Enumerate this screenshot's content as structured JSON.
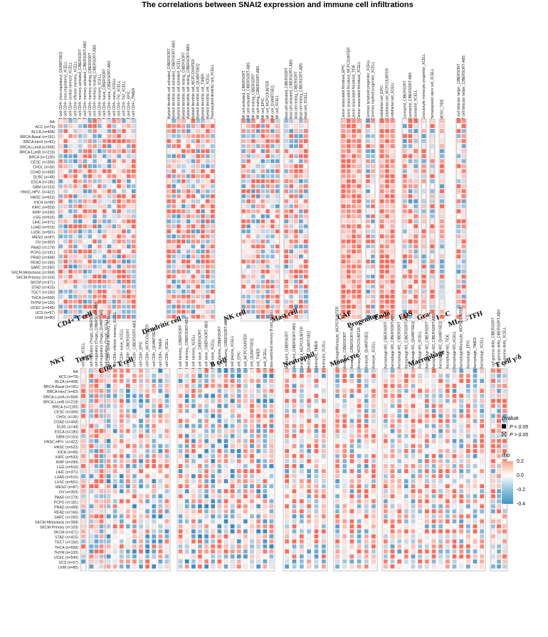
{
  "chart_data": {
    "type": "heatmap",
    "title": "The correlations between SNAI2 expression and immune cell infiltrations",
    "rows": [
      "NA",
      "ACC (n=79)",
      "BLCA (n=408)",
      "BRCA-Basal (n=191)",
      "BRCA-Her2 (n=82)",
      "BRCA-LumA (n=568)",
      "BRCA-LumB (n=219)",
      "BRCA (n=1100)",
      "CESC (n=306)",
      "CHOL (n=36)",
      "COAD (n=458)",
      "DLBC (n=48)",
      "ESCA (n=185)",
      "GBM (n=153)",
      "HNSC-HPV- (n=422)",
      "HNSC (n=522)",
      "KICH (n=66)",
      "KIRC (n=533)",
      "KIRP (n=290)",
      "LGG (n=516)",
      "LIHC (n=371)",
      "LUAD (n=515)",
      "LUSC (n=501)",
      "MESO (n=87)",
      "OV (n=303)",
      "PAAD (n=179)",
      "PCPG (n=181)",
      "PRAD (n=498)",
      "READ (n=166)",
      "SARC (n=260)",
      "SKCM-Metastasis (n=368)",
      "SKCM-Primary (n=103)",
      "SKCM (n=471)",
      "STAD (n=415)",
      "TGCT (n=150)",
      "THCA (n=509)",
      "THYM (n=120)",
      "UCEC (n=545)",
      "UCS (n=57)",
      "UVM (n=80)"
    ],
    "panels": [
      {
        "name": "CD4+ T cell",
        "cols": [
          "T cell CD4+ (non-regulatory)_QUANTISEQ",
          "T cell CD4+ (non-regulatory)_XCELL",
          "T cell CD4+ central memory_XCELL",
          "T cell CD4+ effector memory_XCELL",
          "T cell CD4+ memory activated_CIBERSORT",
          "T cell CD4+ memory activated_CIBERSORT-ABS",
          "T cell CD4+ memory resting_CIBERSORT",
          "T cell CD4+ memory resting_CIBERSORT-ABS",
          "T cell CD4+ memory_XCELL",
          "T cell CD4+ naive_CIBERSORT",
          "T cell CD4+ naive_CIBERSORT-ABS",
          "T cell CD4+ naive_XCELL",
          "T cell CD4+ Th1_XCELL",
          "T cell CD4+ Th2_XCELL",
          "T cell CD4+_EPIC",
          "T cell CD4+_TIMER"
        ]
      },
      {
        "name": "Dendritic cell",
        "cols": [
          "Myeloid dendritic cell activated_CIBERSORT",
          "Myeloid dendritic cell activated_CIBERSORT-ABS",
          "Myeloid dendritic cell activated_XCELL",
          "Myeloid dendritic cell resting_CIBERSORT",
          "Myeloid dendritic cell resting_CIBERSORT-ABS",
          "Myeloid dendritic cell_MCPCOUNTER",
          "Myeloid dendritic cell_QUANTISEQ",
          "Myeloid dendritic cell_TIMER",
          "Myeloid dendritic cell_XCELL",
          "Plasmacytoid dendritic cell_XCELL"
        ]
      },
      {
        "name": "NK cell",
        "cols": [
          "NK cell activated_CIBERSORT",
          "NK cell activated_CIBERSORT-ABS",
          "NK cell resting_CIBERSORT",
          "NK cell resting_CIBERSORT-ABS",
          "NK cell_EPIC",
          "NK cell_MCPCOUNTER",
          "NK cell_QUANTISEQ",
          "NK cell_XCELL"
        ]
      },
      {
        "name": "Mast cell",
        "cols": [
          "Mast cell activated_CIBERSORT",
          "Mast cell activated_CIBERSORT-ABS",
          "Mast cell resting_CIBERSORT",
          "Mast cell resting_CIBERSORT-ABS",
          "Mast cell_XCELL"
        ]
      },
      {
        "name": "CAF",
        "cols": [
          "Cancer associated fibroblast_EPIC",
          "Cancer associated fibroblast_MCPCOUNTER",
          "Cancer associated fibroblast_TIDE",
          "Cancer associated fibroblast_XCELL"
        ]
      },
      {
        "name": "Progenitor",
        "cols": [
          "Common lymphoid progenitor_XCELL",
          "Common myeloid progenitor_XCELL"
        ]
      },
      {
        "name": "Endo",
        "cols": [
          "Endothelial cell_EPIC",
          "Endothelial cell_MCPCOUNTER",
          "Endothelial cell_XCELL"
        ]
      },
      {
        "name": "EOS",
        "cols": [
          "Eosinophil_CIBERSORT",
          "Eosinophil_CIBERSORT-ABS",
          "Eosinophil_XCELL"
        ]
      },
      {
        "name": "Gran",
        "cols": [
          "Granulocyte-monocyte progenitor_XCELL"
        ]
      },
      {
        "name": "HSC",
        "cols": [
          "Hematopoietic stem cell_XCELL"
        ]
      },
      {
        "name": "MDSC",
        "cols": [
          "MDSC_TIDE"
        ]
      },
      {
        "name": "TFH",
        "cols": [
          "T cell follicular helper_CIBERSORT",
          "T cell follicular helper_CIBERSORT-ABS"
        ]
      },
      {
        "name": "NKT",
        "cols": [
          "T cell NK_XCELL"
        ]
      },
      {
        "name": "Tregs",
        "cols": [
          "T cell regulatory (Tregs)_CIBERSORT",
          "T cell regulatory (Tregs)_CIBERSORT-ABS",
          "T cell regulatory (Tregs)_QUANTISEQ",
          "T cell regulatory (Tregs)_XCELL"
        ]
      },
      {
        "name": "CD8+ T cell",
        "cols": [
          "T cell CD8+ central memory_XCELL",
          "T cell CD8+ effector memory_XCELL",
          "T cell CD8+ naive_XCELL",
          "T cell CD8+_CIBERSORT",
          "T cell CD8+_CIBERSORT-ABS",
          "T cell CD8+_EPIC",
          "T cell CD8+_MCPCOUNTER",
          "T cell CD8+_QUANTISEQ",
          "T cell CD8+_TIMER",
          "T cell CD8+_XCELL"
        ]
      },
      {
        "name": "B cell",
        "cols": [
          "B cell memory_CIBERSORT",
          "B cell memory_CIBERSORT-ABS",
          "B cell memory_XCELL",
          "B cell naive_CIBERSORT",
          "B cell naive_CIBERSORT-ABS",
          "B cell naive_XCELL",
          "B cell plasma_CIBERSORT",
          "B cell plasma_CIBERSORT-ABS",
          "B cell plasma_XCELL",
          "B cell_EPIC",
          "B cell_MCPCOUNTER",
          "B cell_QUANTISEQ",
          "B cell_TIMER",
          "B cell_XCELL",
          "Class-switched memory B cell_XCELL"
        ]
      },
      {
        "name": "Neutrophil",
        "cols": [
          "Neutrophil_CIBERSORT",
          "Neutrophil_CIBERSORT-ABS",
          "Neutrophil_MCPCOUNTER",
          "Neutrophil_QUANTISEQ",
          "Neutrophil_TIMER",
          "Neutrophil_XCELL"
        ]
      },
      {
        "name": "Monocyte",
        "cols": [
          "Macrophage/Monocyte_MCPCOUNTER",
          "Monocyte_CIBERSORT",
          "Monocyte_CIBERSORT-ABS",
          "Monocyte_MCPCOUNTER",
          "Monocyte_QUANTISEQ",
          "Monocyte_XCELL"
        ]
      },
      {
        "name": "Macrophage",
        "cols": [
          "Macrophage M0_CIBERSORT",
          "Macrophage M0_CIBERSORT-ABS",
          "Macrophage M1_CIBERSORT",
          "Macrophage M1_CIBERSORT-ABS",
          "Macrophage M1_QUANTISEQ",
          "Macrophage M1_XCELL",
          "Macrophage M2_CIBERSORT",
          "Macrophage M2_CIBERSORT-ABS",
          "Macrophage M2_QUANTISEQ",
          "Macrophage M2_TIDE",
          "Macrophage M2_XCELL",
          "Macrophage/Monocyte_MCPCOUNTER",
          "Macrophage_EPIC",
          "Macrophage_TIMER",
          "Macrophage_XCELL"
        ]
      },
      {
        "name": "T cell γ/δ",
        "cols": [
          "T cell gamma delta_CIBERSORT",
          "T cell gamma delta_CIBERSORT-ABS",
          "T cell gamma delta_XCELL"
        ]
      }
    ],
    "color_scale": {
      "label": "rho",
      "min": -0.4,
      "max": 0.2,
      "ticks": [
        0.2,
        0.0,
        -0.2,
        -0.4
      ],
      "low_color": "#2166ac",
      "mid_color": "#ffffff",
      "high_color": "#d73027"
    },
    "pvalue_legend": {
      "title": "pvalue",
      "items": [
        "P < 0.05",
        "P > 0.05"
      ]
    },
    "significance_marks": {
      "filled": "■",
      "crossed": "⊠"
    }
  }
}
